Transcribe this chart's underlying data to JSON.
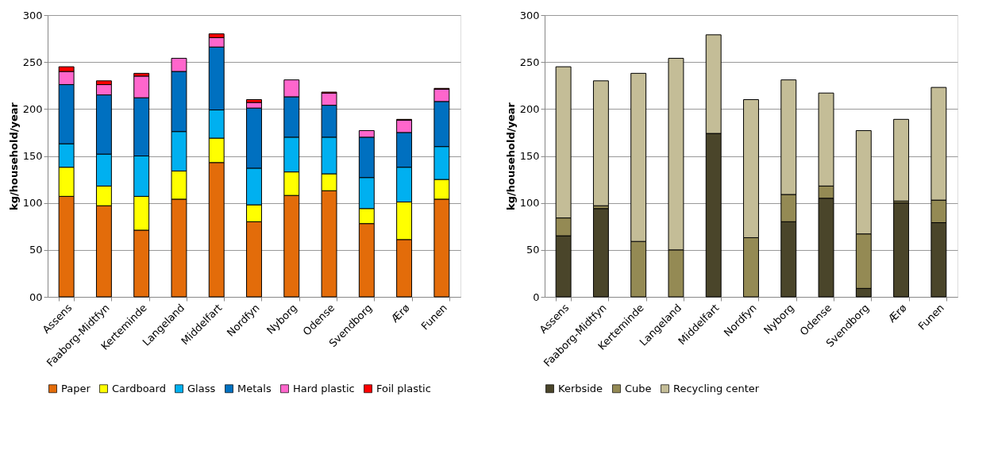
{
  "chart_data": [
    {
      "type": "bar",
      "stacked": true,
      "ylabel": "kg/household/year",
      "categories": [
        "Assens",
        "Faaborg-Midtfyn",
        "Kerteminde",
        "Langeland",
        "Middelfart",
        "Nordfyn",
        "Nyborg",
        "Odense",
        "Svendborg",
        "Ærø",
        "Funen"
      ],
      "ylim": [
        0,
        300
      ],
      "yticks": [
        {
          "value": 0,
          "label": "00"
        },
        50,
        100,
        150,
        200,
        250,
        300
      ],
      "grid": "y",
      "legend": "bottom",
      "series": [
        {
          "name": "Paper",
          "color": "#e36c0a",
          "values": [
            107,
            97,
            71,
            104,
            143,
            80,
            108,
            113,
            78,
            61,
            104
          ]
        },
        {
          "name": "Cardboard",
          "color": "#ffff00",
          "values": [
            31,
            21,
            36,
            30,
            26,
            18,
            25,
            18,
            16,
            40,
            21
          ]
        },
        {
          "name": "Glass",
          "color": "#00b0f0",
          "values": [
            25,
            34,
            43,
            42,
            30,
            39,
            37,
            39,
            33,
            37,
            35
          ]
        },
        {
          "name": "Metals",
          "color": "#0070c0",
          "values": [
            63,
            63,
            62,
            64,
            67,
            64,
            43,
            34,
            43,
            37,
            48
          ]
        },
        {
          "name": "Hard plastic",
          "color": "#ff66cc",
          "values": [
            14,
            11,
            23,
            14,
            10,
            6,
            18,
            13,
            7,
            13,
            13
          ]
        },
        {
          "name": "Foil plastic",
          "color": "#ff0000",
          "values": [
            5,
            4,
            3,
            0,
            4,
            3,
            0,
            1,
            0,
            1,
            1
          ]
        }
      ]
    },
    {
      "type": "bar",
      "stacked": true,
      "ylabel": "kg/household/year",
      "categories": [
        "Assens",
        "Faaborg-Midtfyn",
        "Kerteminde",
        "Langeland",
        "Middelfart",
        "Nordfyn",
        "Nyborg",
        "Odense",
        "Svendborg",
        "Ærø",
        "Funen"
      ],
      "ylim": [
        0,
        300
      ],
      "yticks": [
        0,
        50,
        100,
        150,
        200,
        250,
        300
      ],
      "grid": "y",
      "legend": "bottom",
      "series": [
        {
          "name": "Kerbside",
          "color": "#4a452a",
          "values": [
            65,
            94,
            0,
            0,
            174,
            0,
            80,
            105,
            9,
            100,
            79
          ]
        },
        {
          "name": "Cube",
          "color": "#948a54",
          "values": [
            19,
            3,
            59,
            50,
            0,
            63,
            29,
            13,
            58,
            2,
            24
          ]
        },
        {
          "name": "Recycling center",
          "color": "#c4bd97",
          "values": [
            161,
            133,
            179,
            204,
            105,
            147,
            122,
            99,
            110,
            87,
            120
          ]
        }
      ]
    }
  ]
}
